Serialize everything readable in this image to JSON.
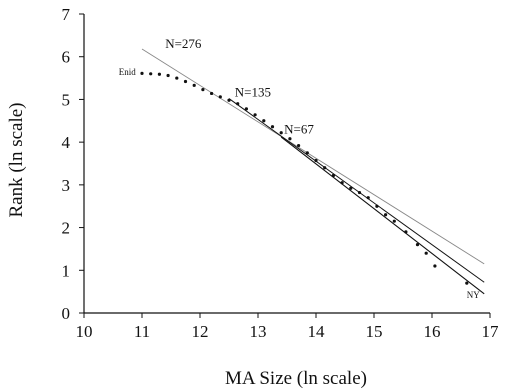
{
  "chart_data": {
    "type": "scatter",
    "title": "",
    "xlabel": "MA Size (ln scale)",
    "ylabel": "Rank (ln scale)",
    "xlim": [
      10,
      17
    ],
    "ylim": [
      0,
      7
    ],
    "x_ticks": [
      "10",
      "11",
      "12",
      "13",
      "14",
      "15",
      "16",
      "17"
    ],
    "y_ticks": [
      "0",
      "1",
      "2",
      "3",
      "4",
      "5",
      "6",
      "7"
    ],
    "grid": false,
    "series": [
      {
        "values": [
          [
            11.0,
            5.61
          ],
          [
            11.15,
            5.6
          ],
          [
            11.3,
            5.59
          ],
          [
            11.45,
            5.56
          ],
          [
            11.6,
            5.5
          ],
          [
            11.75,
            5.42
          ],
          [
            11.9,
            5.33
          ],
          [
            12.05,
            5.23
          ],
          [
            12.2,
            5.14
          ],
          [
            12.35,
            5.06
          ],
          [
            12.5,
            4.98
          ],
          [
            12.65,
            4.9
          ],
          [
            12.8,
            4.78
          ],
          [
            12.95,
            4.64
          ],
          [
            13.1,
            4.5
          ],
          [
            13.25,
            4.36
          ],
          [
            13.4,
            4.22
          ],
          [
            13.55,
            4.08
          ],
          [
            13.7,
            3.92
          ],
          [
            13.85,
            3.75
          ],
          [
            14.0,
            3.57
          ],
          [
            14.15,
            3.4
          ],
          [
            14.3,
            3.22
          ],
          [
            14.45,
            3.05
          ],
          [
            14.6,
            2.92
          ],
          [
            14.75,
            2.82
          ],
          [
            14.9,
            2.7
          ],
          [
            15.05,
            2.5
          ],
          [
            15.2,
            2.3
          ],
          [
            15.35,
            2.15
          ],
          [
            15.55,
            1.9
          ],
          [
            15.75,
            1.6
          ],
          [
            15.9,
            1.4
          ],
          [
            16.05,
            1.1
          ],
          [
            16.6,
            0.7
          ]
        ]
      },
      {
        "values": [
          [
            11.0,
            6.18
          ],
          [
            16.9,
            1.15
          ]
        ]
      },
      {
        "values": [
          [
            12.5,
            5.02
          ],
          [
            16.9,
            0.72
          ]
        ]
      },
      {
        "values": [
          [
            13.4,
            4.12
          ],
          [
            16.9,
            0.45
          ]
        ]
      }
    ],
    "annotations": [
      {
        "text": "N=276",
        "x": 11.4,
        "y": 6.2
      },
      {
        "text": "N=135",
        "x": 12.6,
        "y": 5.07
      },
      {
        "text": "N=67",
        "x": 13.45,
        "y": 4.2
      },
      {
        "text": "Enid",
        "x": 10.6,
        "y": 5.57
      },
      {
        "text": "NY",
        "x": 16.6,
        "y": 0.35
      }
    ]
  }
}
